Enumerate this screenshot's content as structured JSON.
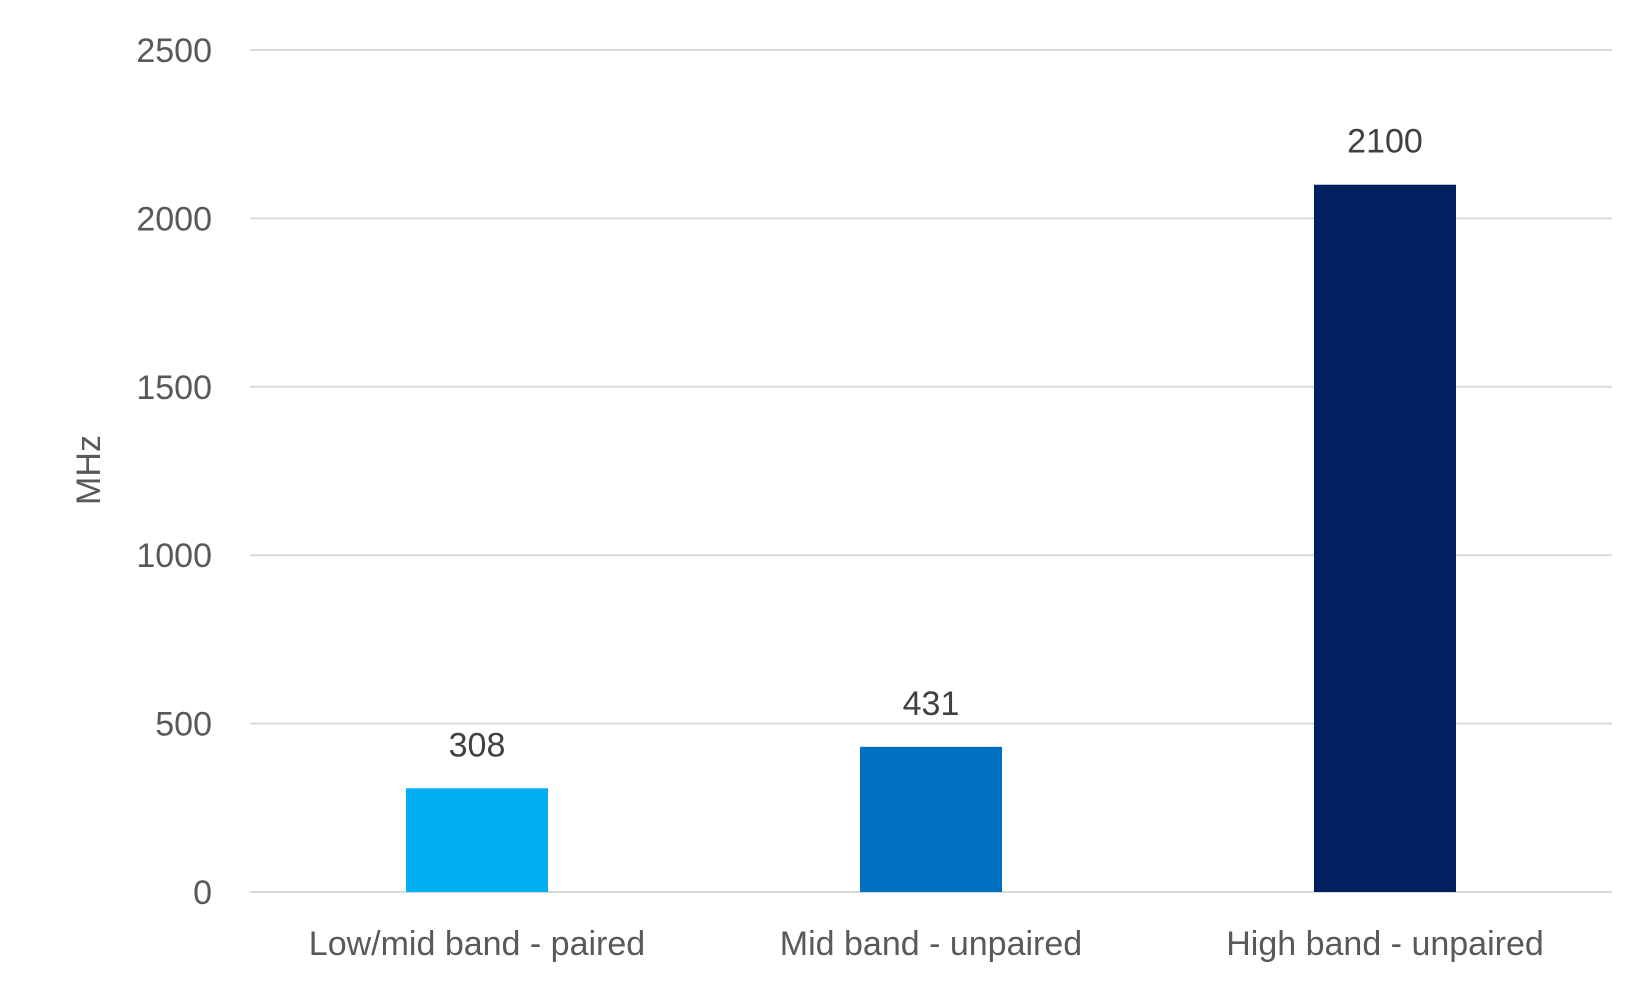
{
  "chart_data": {
    "type": "bar",
    "title": "",
    "xlabel": "",
    "ylabel": "MHz",
    "categories": [
      "Low/mid band - paired",
      "Mid band - unpaired",
      "High band - unpaired"
    ],
    "values": [
      308,
      431,
      2100
    ],
    "data_labels": [
      "308",
      "431",
      "2100"
    ],
    "bar_colors": [
      "#00b0f0",
      "#0070c0",
      "#002060"
    ],
    "ylim": [
      0,
      2500
    ],
    "yticks": [
      0,
      500,
      1000,
      1500,
      2000,
      2500
    ],
    "ytick_labels": [
      "0",
      "500",
      "1000",
      "1500",
      "2000",
      "2500"
    ],
    "grid": true,
    "legend": "none",
    "colors": {
      "gridline": "#d9d9d9",
      "axis_text": "#595959",
      "data_label_text": "#404040",
      "background": "#ffffff"
    }
  }
}
